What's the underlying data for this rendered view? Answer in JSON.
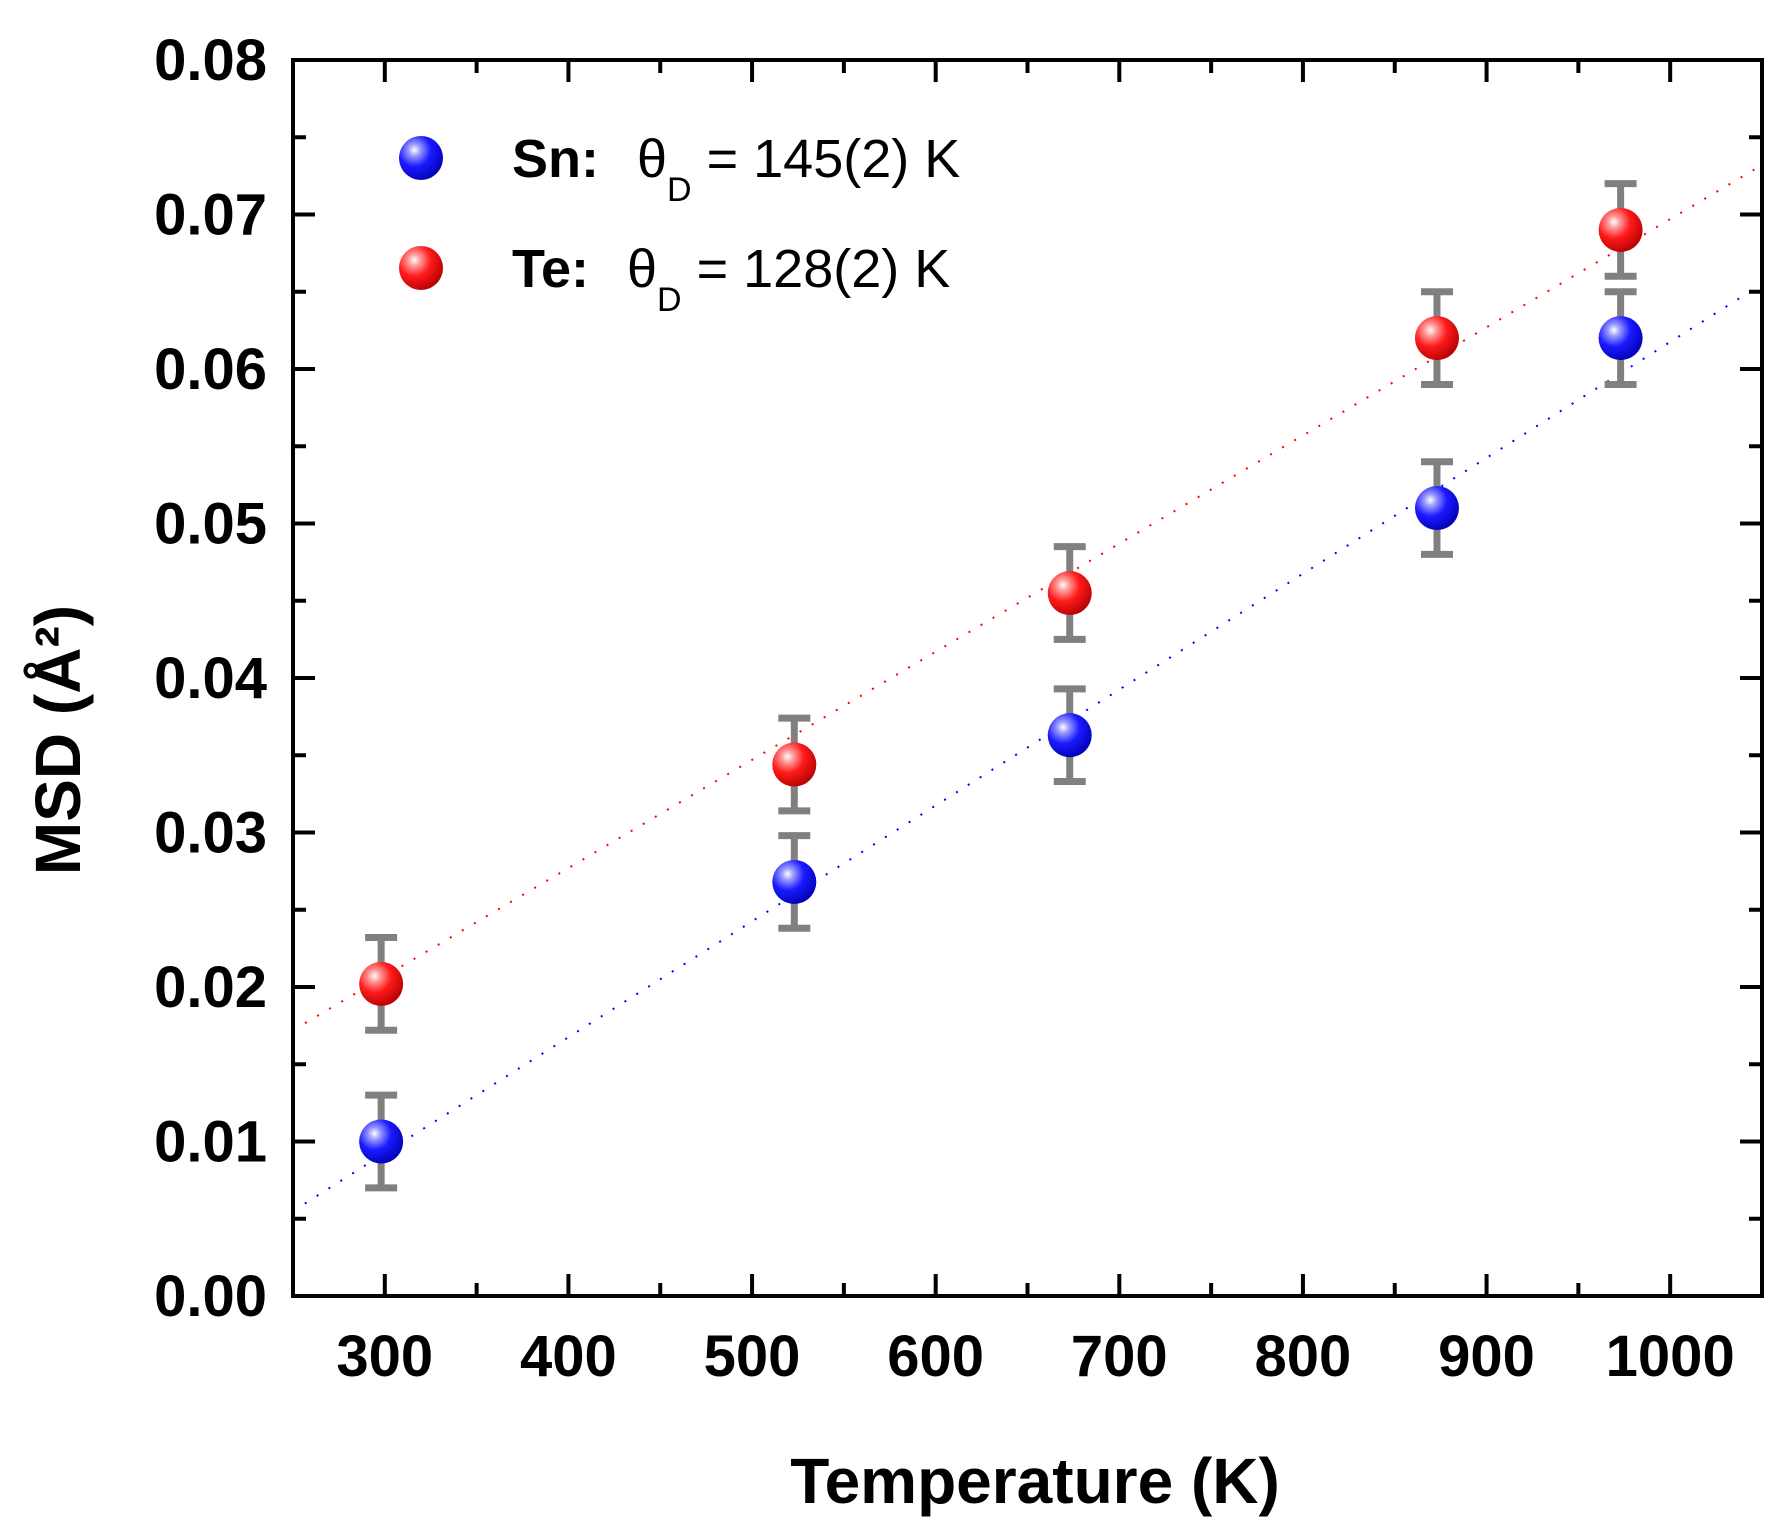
{
  "chart_data": {
    "type": "scatter",
    "title": "",
    "xlabel": "Temperature  (K)",
    "ylabel": "MSD  (Å²)",
    "xlim": [
      250,
      1050
    ],
    "ylim": [
      0.0,
      0.08
    ],
    "xticks": [
      300,
      400,
      500,
      600,
      700,
      800,
      900,
      1000
    ],
    "xtick_labels": [
      "300",
      "400",
      "500",
      "600",
      "700",
      "800",
      "900",
      "1000"
    ],
    "yticks": [
      0.0,
      0.01,
      0.02,
      0.03,
      0.04,
      0.05,
      0.06,
      0.07,
      0.08
    ],
    "ytick_labels": [
      "0.00",
      "0.01",
      "0.02",
      "0.03",
      "0.04",
      "0.05",
      "0.06",
      "0.07",
      "0.08"
    ],
    "legend_position": "top-left",
    "series": [
      {
        "name": "Sn",
        "legend_element": "Sn:",
        "legend_theta": "θ",
        "legend_sub": "D",
        "legend_value": " = 145(2) K",
        "color": "#0000ff",
        "x": [
          298,
          523,
          673,
          873,
          973
        ],
        "y": [
          0.01,
          0.0268,
          0.0363,
          0.051,
          0.062
        ],
        "error": [
          0.003,
          0.003,
          0.003,
          0.003,
          0.003
        ],
        "fit": {
          "x": [
            250,
            1050
          ],
          "y": [
            0.0055,
            0.0655
          ]
        }
      },
      {
        "name": "Te",
        "legend_element": "Te:",
        "legend_theta": "θ",
        "legend_sub": "D",
        "legend_value": " = 128(2) K",
        "color": "#ff0000",
        "x": [
          298,
          523,
          673,
          873,
          973
        ],
        "y": [
          0.0202,
          0.0344,
          0.0455,
          0.062,
          0.069
        ],
        "error": [
          0.003,
          0.003,
          0.003,
          0.003,
          0.003
        ],
        "fit": {
          "x": [
            250,
            1050
          ],
          "y": [
            0.0172,
            0.0732
          ]
        }
      }
    ],
    "error_bar_color": "#808080"
  }
}
